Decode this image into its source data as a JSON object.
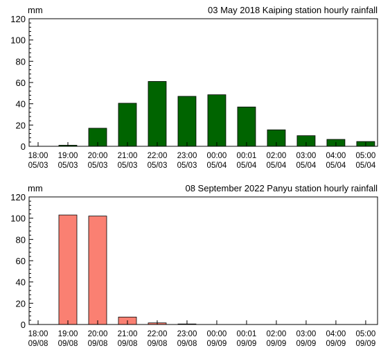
{
  "chart_data": [
    {
      "type": "bar",
      "title": "03 May 2018 Kaiping station hourly rainfall",
      "ylabel": "mm",
      "xlabel": "",
      "ylim": [
        0,
        120
      ],
      "yticks": [
        0,
        20,
        40,
        60,
        80,
        100,
        120
      ],
      "bar_color": "#006400",
      "grid": false,
      "categories": [
        [
          "18:00",
          "05/03"
        ],
        [
          "19:00",
          "05/03"
        ],
        [
          "20:00",
          "05/03"
        ],
        [
          "21:00",
          "05/03"
        ],
        [
          "22:00",
          "05/03"
        ],
        [
          "23:00",
          "05/03"
        ],
        [
          "00:00",
          "05/04"
        ],
        [
          "00:01",
          "05/04"
        ],
        [
          "02:00",
          "05/04"
        ],
        [
          "03:00",
          "05/04"
        ],
        [
          "04:00",
          "05/04"
        ],
        [
          "05:00",
          "05/04"
        ]
      ],
      "values": [
        0,
        1,
        17,
        40.5,
        61,
        47,
        48.5,
        37,
        15.5,
        10,
        6.5,
        4.5
      ]
    },
    {
      "type": "bar",
      "title": "08 September 2022 Panyu station hourly rainfall",
      "ylabel": "mm",
      "xlabel": "",
      "ylim": [
        0,
        120
      ],
      "yticks": [
        0,
        20,
        40,
        60,
        80,
        100,
        120
      ],
      "bar_color": "#fa8072",
      "grid": false,
      "categories": [
        [
          "18:00",
          "09/08"
        ],
        [
          "19:00",
          "09/08"
        ],
        [
          "20:00",
          "09/08"
        ],
        [
          "21:00",
          "09/08"
        ],
        [
          "22:00",
          "09/08"
        ],
        [
          "23:00",
          "09/08"
        ],
        [
          "00:00",
          "09/09"
        ],
        [
          "00:01",
          "09/09"
        ],
        [
          "02:00",
          "09/09"
        ],
        [
          "03:00",
          "09/09"
        ],
        [
          "04:00",
          "09/09"
        ],
        [
          "05:00",
          "09/09"
        ]
      ],
      "values": [
        0,
        103,
        102,
        7,
        1.5,
        0.5,
        0,
        0,
        0,
        0,
        0,
        0
      ]
    }
  ]
}
